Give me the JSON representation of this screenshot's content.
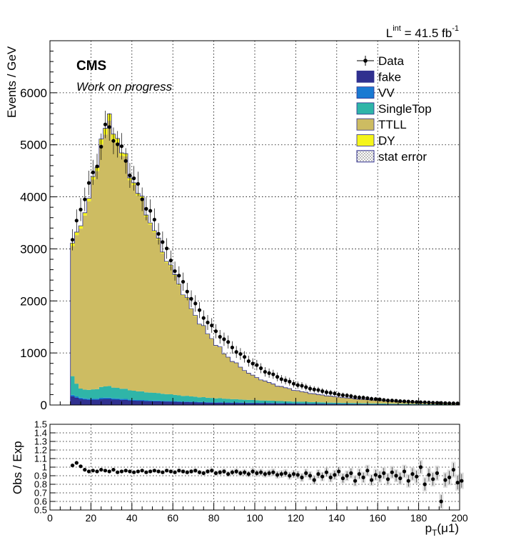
{
  "luminosity_label": "L",
  "luminosity_sup": "int",
  "luminosity_value": " = 41.5 fb",
  "luminosity_unit_sup": "-1",
  "cms_label": "CMS",
  "cms_sublabel": "Work on progress",
  "colors": {
    "fake": "#30308f",
    "VV": "#1a7ad2",
    "SingleTop": "#2fb5a8",
    "TTLL": "#cdbc62",
    "DY": "#f5f51a",
    "data": "#000000"
  },
  "chart_data": [
    {
      "type": "histogram",
      "stacked": true,
      "ylabel": "Events / GeV",
      "xlim": [
        0,
        200
      ],
      "ylim": [
        0,
        7000
      ],
      "yticks": [
        0,
        1000,
        2000,
        3000,
        4000,
        5000,
        6000
      ],
      "grid": true,
      "legend_position": "top-right",
      "legend": [
        "Data",
        "fake",
        "VV",
        "SingleTop",
        "TTLL",
        "DY",
        "stat error"
      ],
      "bin_width": 2,
      "x": [
        10,
        14,
        18,
        22,
        26,
        30,
        34,
        38,
        42,
        46,
        50,
        56,
        60,
        65,
        70,
        75,
        80,
        85,
        90,
        95,
        100,
        110,
        120,
        130,
        140,
        150,
        160,
        170,
        180,
        190,
        200
      ],
      "series": [
        {
          "name": "fake",
          "values": [
            180,
            120,
            100,
            95,
            120,
            110,
            100,
            90,
            80,
            75,
            70,
            65,
            60,
            55,
            50,
            45,
            42,
            40,
            38,
            36,
            34,
            30,
            26,
            22,
            18,
            15,
            12,
            10,
            8,
            6,
            5
          ]
        },
        {
          "name": "VV",
          "values": [
            30,
            25,
            22,
            22,
            25,
            24,
            22,
            20,
            18,
            17,
            16,
            15,
            14,
            13,
            12,
            11,
            10,
            10,
            9,
            9,
            8,
            7,
            6,
            5,
            4,
            3,
            3,
            2,
            2,
            2,
            1
          ]
        },
        {
          "name": "SingleTop",
          "values": [
            420,
            180,
            170,
            175,
            220,
            215,
            200,
            185,
            170,
            160,
            150,
            135,
            125,
            110,
            100,
            90,
            80,
            72,
            65,
            58,
            52,
            42,
            34,
            27,
            21,
            17,
            13,
            10,
            8,
            6,
            5
          ]
        },
        {
          "name": "TTLL",
          "values": [
            2350,
            2950,
            3520,
            4050,
            4880,
            4950,
            4630,
            4220,
            3870,
            3530,
            3160,
            2640,
            2350,
            1970,
            1600,
            1320,
            1080,
            860,
            700,
            560,
            440,
            300,
            210,
            150,
            110,
            80,
            60,
            45,
            32,
            25,
            20
          ]
        },
        {
          "name": "DY",
          "values": [
            60,
            55,
            55,
            60,
            120,
            130,
            60,
            50,
            40,
            35,
            30,
            25,
            22,
            18,
            15,
            12,
            10,
            8,
            7,
            6,
            5,
            4,
            3,
            2,
            2,
            1,
            1,
            1,
            1,
            1,
            1
          ]
        }
      ],
      "data": {
        "name": "Data",
        "x": [
          10,
          12,
          14,
          16,
          18,
          20,
          22,
          24,
          26,
          28,
          30,
          32,
          34,
          36,
          38,
          40,
          42,
          44,
          46,
          48,
          50,
          52,
          54,
          56,
          58,
          60,
          62,
          64,
          66,
          68,
          70,
          72,
          74,
          76,
          78,
          80,
          84,
          88,
          92,
          96,
          100,
          105,
          110,
          115,
          120,
          125,
          130,
          135,
          140,
          145,
          150,
          155,
          160,
          165,
          170,
          175,
          180,
          185,
          190,
          195,
          200
        ],
        "y": [
          3050,
          3300,
          3650,
          3900,
          4150,
          4300,
          4500,
          4800,
          5250,
          5350,
          5250,
          5100,
          4950,
          4800,
          4600,
          4400,
          4250,
          4100,
          3900,
          3750,
          3600,
          3450,
          3250,
          3050,
          2850,
          2700,
          2550,
          2400,
          2250,
          2150,
          2000,
          1850,
          1750,
          1650,
          1550,
          1450,
          1300,
          1150,
          1000,
          880,
          780,
          650,
          560,
          470,
          400,
          340,
          290,
          250,
          210,
          180,
          150,
          130,
          110,
          90,
          78,
          66,
          56,
          48,
          40,
          34,
          30
        ]
      }
    },
    {
      "type": "scatter",
      "ylabel": "Obs / Exp",
      "xlabel": "p",
      "xlabel_sub": "T",
      "xlabel_suffix": "(μ1)",
      "xlim": [
        0,
        200
      ],
      "ylim": [
        0.5,
        1.5
      ],
      "yticks": [
        "0.5",
        "0.6",
        "0.7",
        "0.8",
        "0.9",
        "1",
        "1.1",
        "1.2",
        "1.3",
        "1.4",
        "1.5"
      ],
      "xticks": [
        "0",
        "20",
        "40",
        "60",
        "80",
        "100",
        "120",
        "140",
        "160",
        "180",
        "200"
      ],
      "grid": true,
      "x": [
        10,
        12,
        14,
        16,
        18,
        20,
        22,
        24,
        26,
        28,
        30,
        32,
        34,
        36,
        38,
        40,
        42,
        44,
        46,
        48,
        50,
        52,
        54,
        56,
        58,
        60,
        62,
        64,
        66,
        68,
        70,
        72,
        74,
        76,
        78,
        80,
        82,
        84,
        86,
        88,
        90,
        92,
        94,
        96,
        98,
        100,
        102,
        104,
        106,
        108,
        110,
        112,
        114,
        116,
        118,
        120,
        122,
        124,
        126,
        128,
        130,
        132,
        134,
        136,
        138,
        140,
        142,
        144,
        146,
        148,
        150,
        152,
        154,
        156,
        158,
        160,
        162,
        164,
        166,
        168,
        170,
        172,
        174,
        176,
        178,
        180,
        182,
        184,
        186,
        188,
        190,
        192,
        194,
        196,
        198,
        200
      ],
      "y": [
        1.02,
        1.05,
        1.01,
        0.97,
        0.95,
        0.96,
        0.95,
        0.97,
        0.96,
        0.95,
        0.97,
        0.94,
        0.95,
        0.96,
        0.95,
        0.94,
        0.95,
        0.96,
        0.94,
        0.95,
        0.96,
        0.95,
        0.94,
        0.96,
        0.95,
        0.94,
        0.96,
        0.95,
        0.94,
        0.95,
        0.96,
        0.94,
        0.93,
        0.95,
        0.96,
        0.93,
        0.94,
        0.95,
        0.92,
        0.94,
        0.95,
        0.93,
        0.94,
        0.92,
        0.95,
        0.93,
        0.94,
        0.92,
        0.93,
        0.94,
        0.91,
        0.92,
        0.93,
        0.9,
        0.92,
        0.91,
        0.88,
        0.93,
        0.9,
        0.85,
        0.92,
        0.89,
        0.94,
        0.88,
        0.91,
        0.95,
        0.87,
        0.9,
        0.93,
        0.84,
        0.92,
        0.88,
        0.96,
        0.85,
        0.91,
        0.89,
        0.93,
        0.86,
        0.94,
        0.9,
        0.87,
        0.95,
        0.84,
        0.92,
        0.89,
        1.0,
        0.8,
        0.91,
        0.86,
        0.93,
        0.6,
        0.85,
        0.88,
        0.97,
        0.82,
        0.84
      ]
    }
  ]
}
